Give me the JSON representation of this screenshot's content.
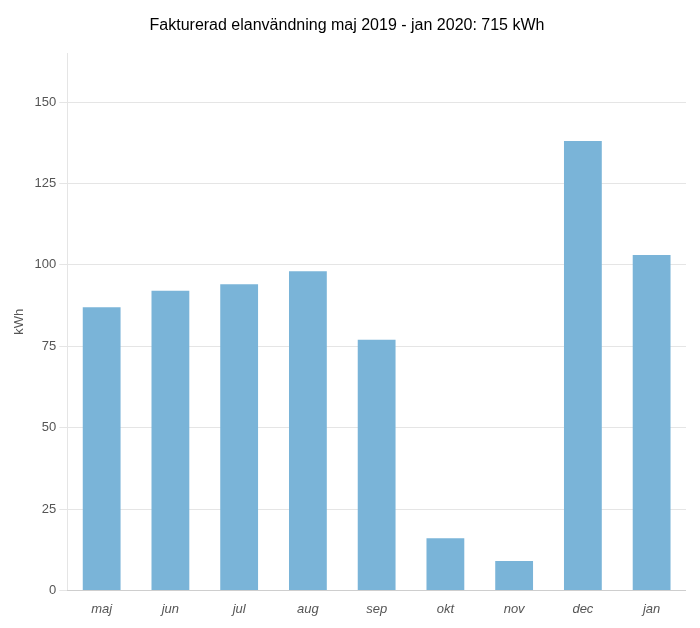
{
  "chart_data": {
    "type": "bar",
    "title": "Fakturerad elanvändning maj 2019 - jan 2020: 715 kWh",
    "ylabel": "kWh",
    "categories": [
      "maj",
      "jun",
      "jul",
      "aug",
      "sep",
      "okt",
      "nov",
      "dec",
      "jan"
    ],
    "values": [
      87,
      92,
      94,
      98,
      77,
      16,
      9,
      138,
      103
    ],
    "color": "#7ab4d8",
    "ylim": [
      0,
      165
    ],
    "yticks": [
      0,
      25,
      50,
      75,
      100,
      125,
      150
    ],
    "grid": true
  }
}
